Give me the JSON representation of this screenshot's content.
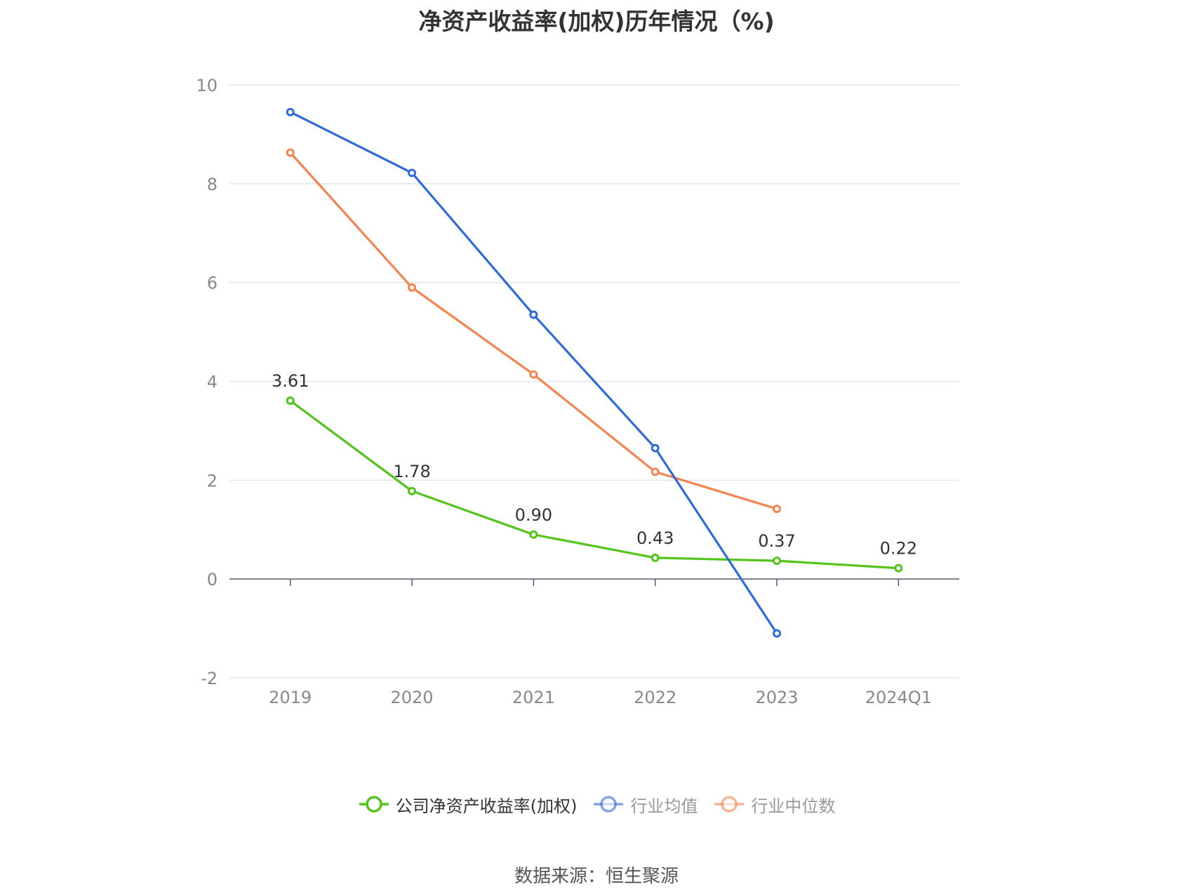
{
  "chart_data": {
    "type": "line",
    "title": "净资产收益率(加权)历年情况（%)",
    "categories": [
      "2019",
      "2020",
      "2021",
      "2022",
      "2023",
      "2024Q1"
    ],
    "ylim": [
      -2,
      10
    ],
    "yticks": [
      "10",
      "8",
      "6",
      "4",
      "2",
      "0",
      "-2"
    ],
    "grid": true,
    "legend_position": "bottom-center",
    "series": [
      {
        "name": "公司净资产收益率(加权)",
        "color": "#52c41a",
        "values": [
          3.61,
          1.78,
          0.9,
          0.43,
          0.37,
          0.22
        ],
        "labels": [
          "3.61",
          "1.78",
          "0.90",
          "0.43",
          "0.37",
          "0.22"
        ]
      },
      {
        "name": "行业均值",
        "color": "#2f6bdc",
        "values": [
          9.45,
          8.22,
          5.35,
          2.65,
          -1.1,
          null
        ]
      },
      {
        "name": "行业中位数",
        "color": "#f5844f",
        "values": [
          8.63,
          5.9,
          4.14,
          2.17,
          1.42,
          null
        ]
      }
    ],
    "source": "数据来源：恒生聚源"
  }
}
